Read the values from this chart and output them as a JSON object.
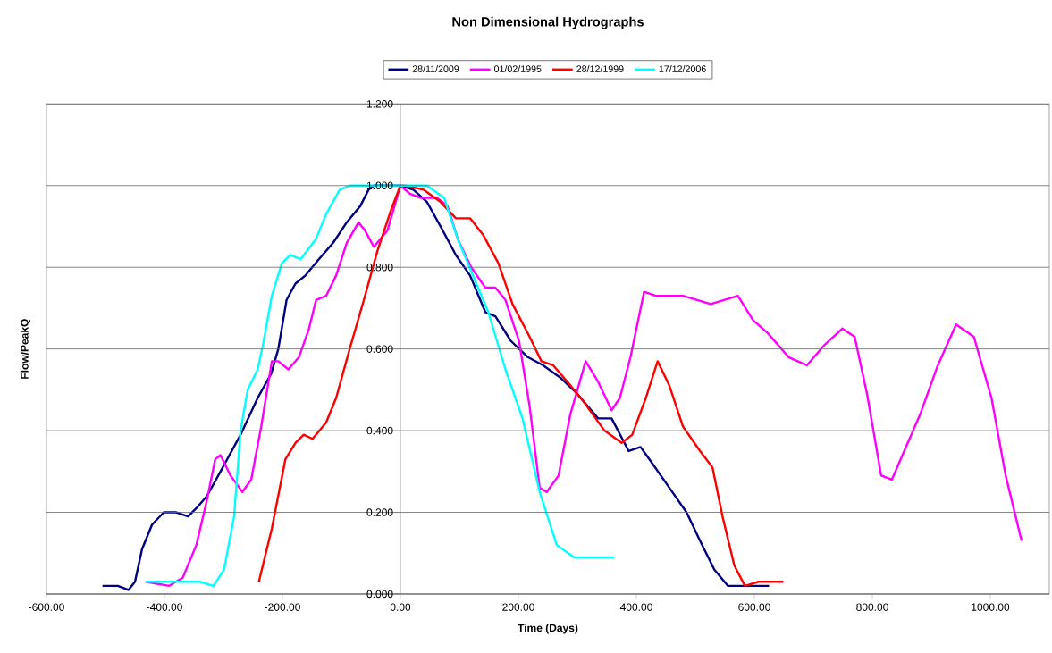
{
  "chart_data": {
    "type": "line",
    "title": "Non Dimensional Hydrographs",
    "xlabel": "Time (Days)",
    "ylabel": "Flow/PeakQ",
    "xlim": [
      -600,
      1100
    ],
    "ylim": [
      0,
      1.2
    ],
    "xticks": [
      {
        "value": -600,
        "label": "-600.00"
      },
      {
        "value": -400,
        "label": "-400.00"
      },
      {
        "value": -200,
        "label": "-200.00"
      },
      {
        "value": 0,
        "label": "0.00"
      },
      {
        "value": 200,
        "label": "200.00"
      },
      {
        "value": 400,
        "label": "400.00"
      },
      {
        "value": 600,
        "label": "600.00"
      },
      {
        "value": 800,
        "label": "800.00"
      },
      {
        "value": 1000,
        "label": "1000.00"
      }
    ],
    "yticks": [
      {
        "value": 0,
        "label": "0.000"
      },
      {
        "value": 0.2,
        "label": "0.200"
      },
      {
        "value": 0.4,
        "label": "0.400"
      },
      {
        "value": 0.6,
        "label": "0.600"
      },
      {
        "value": 0.8,
        "label": "0.800"
      },
      {
        "value": 1.0,
        "label": "1.000"
      },
      {
        "value": 1.2,
        "label": "1.200"
      }
    ],
    "grid": "y",
    "legend": "top",
    "marker": "none",
    "line_style": "solid",
    "series": [
      {
        "name": "28/11/2009",
        "color": "#000080",
        "x": [
          -505,
          -479,
          -461,
          -450,
          -438,
          -421,
          -401,
          -380,
          -360,
          -346,
          -328,
          -305,
          -271,
          -242,
          -219,
          -207,
          -193,
          -178,
          -161,
          -138,
          -114,
          -91,
          -68,
          -54,
          -45,
          0,
          22,
          45,
          68,
          94,
          118,
          144,
          161,
          187,
          216,
          242,
          271,
          300,
          335,
          358,
          387,
          407,
          427,
          456,
          485,
          508,
          532,
          555,
          578,
          625
        ],
        "values": [
          0.02,
          0.02,
          0.01,
          0.03,
          0.11,
          0.17,
          0.2,
          0.2,
          0.19,
          0.21,
          0.24,
          0.3,
          0.39,
          0.48,
          0.54,
          0.6,
          0.72,
          0.76,
          0.78,
          0.82,
          0.86,
          0.91,
          0.95,
          0.99,
          1.0,
          1.0,
          0.99,
          0.96,
          0.9,
          0.83,
          0.78,
          0.69,
          0.68,
          0.62,
          0.58,
          0.56,
          0.53,
          0.49,
          0.43,
          0.43,
          0.35,
          0.36,
          0.32,
          0.26,
          0.2,
          0.13,
          0.06,
          0.02,
          0.02,
          0.02
        ]
      },
      {
        "name": "01/02/1995",
        "color": "#ff00ff",
        "x": [
          -432,
          -392,
          -369,
          -346,
          -328,
          -314,
          -305,
          -288,
          -268,
          -253,
          -236,
          -218,
          -207,
          -190,
          -172,
          -155,
          -143,
          -126,
          -109,
          -91,
          -71,
          -60,
          -45,
          -22,
          0,
          16,
          34,
          62,
          80,
          97,
          120,
          144,
          161,
          178,
          201,
          219,
          236,
          248,
          268,
          288,
          314,
          335,
          358,
          372,
          390,
          413,
          433,
          479,
          526,
          572,
          598,
          622,
          658,
          689,
          719,
          749,
          770,
          791,
          815,
          833,
          857,
          881,
          911,
          942,
          972,
          1002,
          1026,
          1053
        ],
        "values": [
          0.03,
          0.02,
          0.04,
          0.12,
          0.23,
          0.33,
          0.34,
          0.29,
          0.25,
          0.28,
          0.41,
          0.57,
          0.57,
          0.55,
          0.58,
          0.65,
          0.72,
          0.73,
          0.78,
          0.86,
          0.91,
          0.89,
          0.85,
          0.89,
          1.0,
          0.98,
          0.97,
          0.97,
          0.95,
          0.87,
          0.8,
          0.75,
          0.75,
          0.72,
          0.62,
          0.46,
          0.26,
          0.25,
          0.29,
          0.44,
          0.57,
          0.52,
          0.45,
          0.48,
          0.58,
          0.74,
          0.73,
          0.73,
          0.71,
          0.73,
          0.67,
          0.64,
          0.58,
          0.56,
          0.61,
          0.65,
          0.63,
          0.49,
          0.29,
          0.28,
          0.36,
          0.44,
          0.56,
          0.66,
          0.63,
          0.48,
          0.29,
          0.13
        ]
      },
      {
        "name": "28/12/1999",
        "color": "#ff0000",
        "x": [
          -240,
          -218,
          -195,
          -178,
          -164,
          -149,
          -126,
          -109,
          -86,
          -62,
          -39,
          -16,
          0,
          8,
          39,
          68,
          94,
          118,
          140,
          166,
          190,
          219,
          239,
          259,
          283,
          311,
          346,
          375,
          393,
          416,
          436,
          456,
          479,
          508,
          529,
          546,
          566,
          584,
          607,
          649
        ],
        "values": [
          0.03,
          0.16,
          0.33,
          0.37,
          0.39,
          0.38,
          0.42,
          0.48,
          0.6,
          0.72,
          0.84,
          0.94,
          1.0,
          1.0,
          0.99,
          0.96,
          0.92,
          0.92,
          0.88,
          0.81,
          0.71,
          0.63,
          0.57,
          0.56,
          0.52,
          0.47,
          0.4,
          0.37,
          0.39,
          0.48,
          0.57,
          0.51,
          0.41,
          0.35,
          0.31,
          0.19,
          0.07,
          0.02,
          0.03,
          0.03
        ]
      },
      {
        "name": "17/12/2006",
        "color": "#00ffff",
        "x": [
          -432,
          -340,
          -317,
          -299,
          -282,
          -271,
          -259,
          -242,
          -233,
          -218,
          -201,
          -187,
          -169,
          -143,
          -126,
          -103,
          -86,
          0,
          45,
          74,
          97,
          120,
          149,
          178,
          207,
          236,
          265,
          294,
          335,
          362
        ],
        "values": [
          0.03,
          0.03,
          0.02,
          0.06,
          0.19,
          0.4,
          0.5,
          0.55,
          0.61,
          0.73,
          0.81,
          0.83,
          0.82,
          0.87,
          0.93,
          0.99,
          1.0,
          1.0,
          1.0,
          0.97,
          0.87,
          0.79,
          0.69,
          0.55,
          0.43,
          0.25,
          0.12,
          0.09,
          0.09,
          0.09
        ]
      }
    ]
  }
}
